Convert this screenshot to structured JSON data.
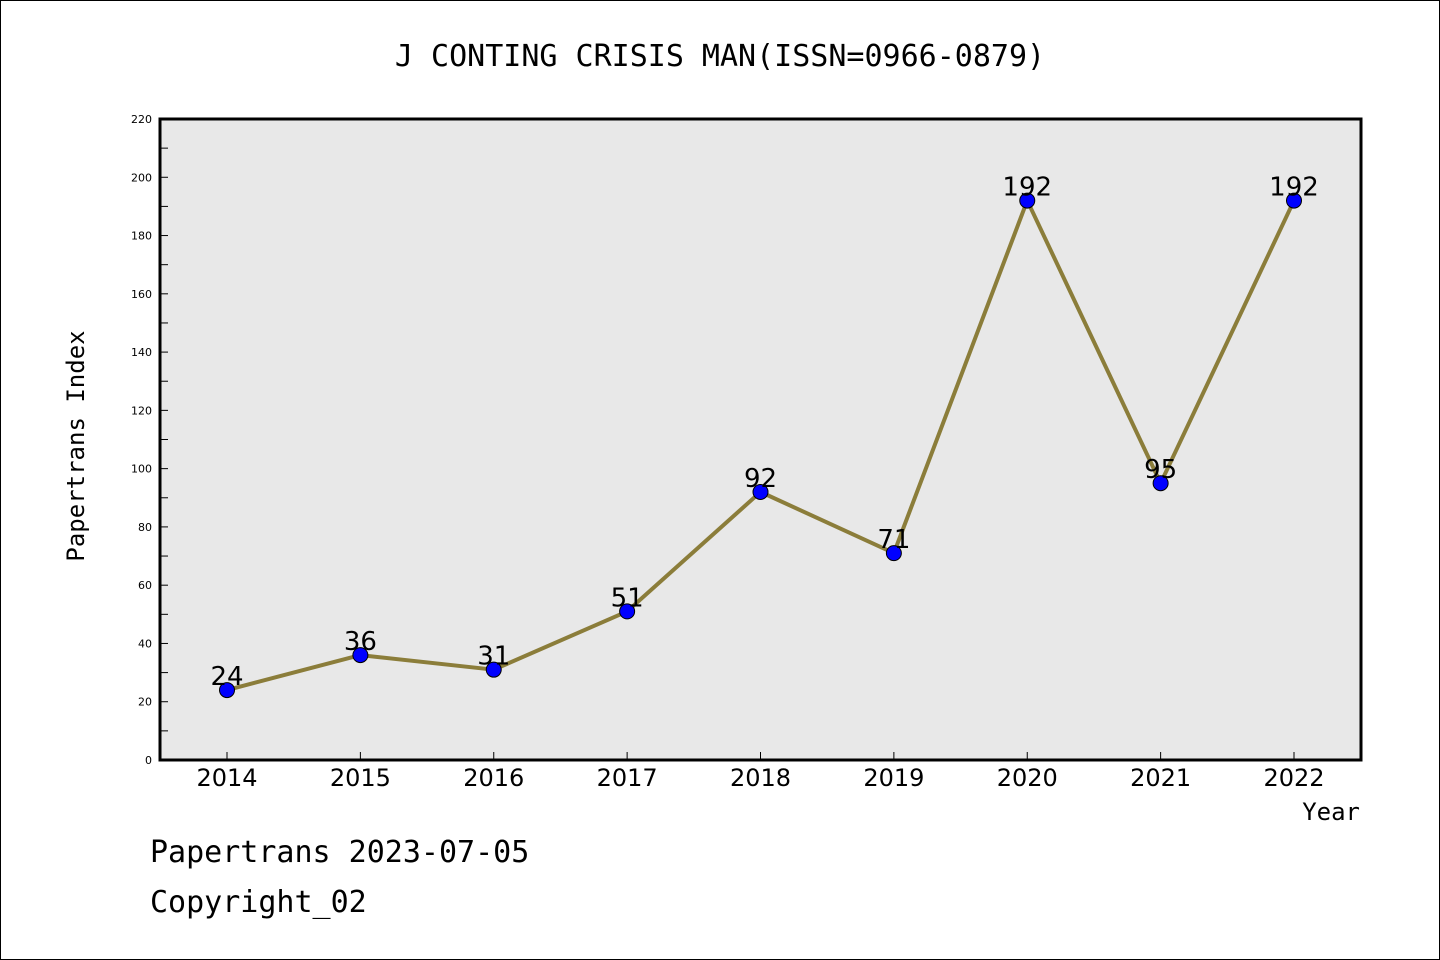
{
  "chart_data": {
    "type": "line",
    "title": "J CONTING CRISIS MAN(ISSN=0966-0879)",
    "xlabel": "Year",
    "ylabel": "Papertrans Index",
    "categories": [
      "2014",
      "2015",
      "2016",
      "2017",
      "2018",
      "2019",
      "2020",
      "2021",
      "2022"
    ],
    "values": [
      24,
      36,
      31,
      51,
      92,
      71,
      192,
      95,
      192
    ],
    "data_labels": [
      "24",
      "36",
      "31",
      "51",
      "92",
      "71",
      "192",
      "95",
      "192"
    ],
    "ylim": [
      0,
      220
    ],
    "yticks": [
      "0",
      "20",
      "40",
      "60",
      "80",
      "100",
      "120",
      "140",
      "160",
      "180",
      "200",
      "220"
    ],
    "grid": false,
    "line_color": "#8b7d3a",
    "marker_color": "#0000ff",
    "plot_background": "#e8e8e8"
  },
  "footer": {
    "line1": "Papertrans 2023-07-05",
    "line2": "Copyright_02"
  }
}
